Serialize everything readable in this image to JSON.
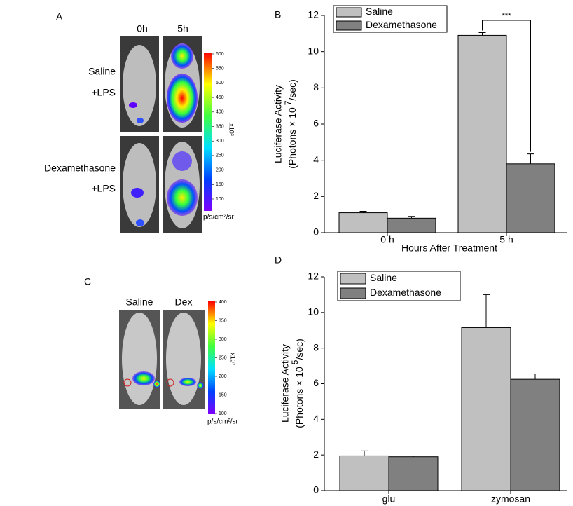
{
  "panels": {
    "A": {
      "label": "A",
      "columns": [
        "0h",
        "5h"
      ],
      "rows": [
        [
          "Saline",
          "+LPS"
        ],
        [
          "Dexamethasone",
          "+LPS"
        ]
      ],
      "colorbar": {
        "ticks": [
          100,
          150,
          200,
          250,
          300,
          350,
          400,
          450,
          500,
          550,
          600
        ],
        "scale": "x10³",
        "unit": "p/s/cm²/sr"
      }
    },
    "C": {
      "label": "C",
      "columns": [
        "Saline",
        "Dex"
      ],
      "colorbar": {
        "ticks": [
          100,
          150,
          200,
          250,
          300,
          350,
          400
        ],
        "scale": "x10³",
        "unit": "p/s/cm²/sr"
      }
    }
  },
  "chart_data": [
    {
      "type": "bar",
      "panel": "B",
      "ylabel": [
        "Luciferase Activity",
        "(Photons × 10",
        "7",
        "/sec)"
      ],
      "xlabel": "Hours After Treatment",
      "categories": [
        "0 h",
        "5 h"
      ],
      "series": [
        {
          "name": "Saline",
          "color": "#c0c0c0",
          "values": [
            1.1,
            10.9
          ],
          "errors": [
            0.08,
            0.15
          ]
        },
        {
          "name": "Dexamethasone",
          "color": "#808080",
          "values": [
            0.8,
            3.8
          ],
          "errors": [
            0.1,
            0.55
          ]
        }
      ],
      "annotation": "***",
      "ylim": [
        0,
        12
      ],
      "yticks": [
        0,
        2,
        4,
        6,
        8,
        10,
        12
      ]
    },
    {
      "type": "bar",
      "panel": "D",
      "ylabel": [
        "Luciferase Activity",
        "(Photons × 10",
        "5",
        "/sec)"
      ],
      "categories": [
        "glu",
        "zymosan"
      ],
      "series": [
        {
          "name": "Saline",
          "color": "#c0c0c0",
          "values": [
            1.95,
            9.15
          ],
          "errors": [
            0.28,
            1.85
          ]
        },
        {
          "name": "Dexamethasone",
          "color": "#808080",
          "values": [
            1.9,
            6.25
          ],
          "errors": [
            0.05,
            0.3
          ]
        }
      ],
      "ylim": [
        0,
        12
      ],
      "yticks": [
        0,
        2,
        4,
        6,
        8,
        10,
        12
      ]
    }
  ]
}
